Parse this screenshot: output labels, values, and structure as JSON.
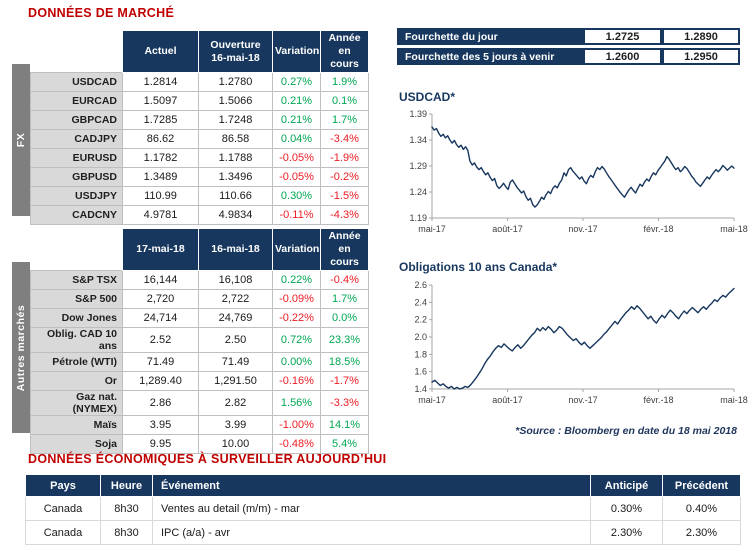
{
  "titles": {
    "market": "DONNÉES DE MARCHÉ",
    "econ": "DONNÉES ÉCONOMIQUES À SURVEILLER AUJOURD’HUI",
    "source": "*Source : Bloomberg en date du  18 mai 2018"
  },
  "colors": {
    "accent_navy": "#17375E",
    "positive_green": "#00A651",
    "negative_red": "#ED1C24",
    "title_red": "#C00000",
    "row_label_bg": "#D9D9D9",
    "group_strip_bg": "#7F7F7F"
  },
  "fx": {
    "group_label": "FX",
    "headers": [
      "Actuel",
      "Ouverture\n16-mai-18",
      "Variation",
      "Année en\ncours"
    ],
    "rows": [
      {
        "label": "USDCAD",
        "actuel": "1.2814",
        "ouverture": "1.2780",
        "variation": "0.27%",
        "ytd": "1.9%"
      },
      {
        "label": "EURCAD",
        "actuel": "1.5097",
        "ouverture": "1.5066",
        "variation": "0.21%",
        "ytd": "0.1%"
      },
      {
        "label": "GBPCAD",
        "actuel": "1.7285",
        "ouverture": "1.7248",
        "variation": "0.21%",
        "ytd": "1.7%"
      },
      {
        "label": "CADJPY",
        "actuel": "86.62",
        "ouverture": "86.58",
        "variation": "0.04%",
        "ytd": "-3.4%"
      },
      {
        "label": "EURUSD",
        "actuel": "1.1782",
        "ouverture": "1.1788",
        "variation": "-0.05%",
        "ytd": "-1.9%"
      },
      {
        "label": "GBPUSD",
        "actuel": "1.3489",
        "ouverture": "1.3496",
        "variation": "-0.05%",
        "ytd": "-0.2%"
      },
      {
        "label": "USDJPY",
        "actuel": "110.99",
        "ouverture": "110.66",
        "variation": "0.30%",
        "ytd": "-1.5%"
      },
      {
        "label": "CADCNY",
        "actuel": "4.9781",
        "ouverture": "4.9834",
        "variation": "-0.11%",
        "ytd": "-4.3%"
      }
    ]
  },
  "markets": {
    "group_label": "Autres marchés",
    "headers": [
      "17-mai-18",
      "16-mai-18",
      "Variation",
      "Année en\ncours"
    ],
    "rows": [
      {
        "label": "S&P TSX",
        "c1": "16,144",
        "c2": "16,108",
        "variation": "0.22%",
        "ytd": "-0.4%"
      },
      {
        "label": "S&P 500",
        "c1": "2,720",
        "c2": "2,722",
        "variation": "-0.09%",
        "ytd": "1.7%"
      },
      {
        "label": "Dow Jones",
        "c1": "24,714",
        "c2": "24,769",
        "variation": "-0.22%",
        "ytd": "0.0%"
      },
      {
        "label": "Oblig. CAD 10 ans",
        "c1": "2.52",
        "c2": "2.50",
        "variation": "0.72%",
        "ytd": "23.3%"
      },
      {
        "label": "Pétrole (WTI)",
        "c1": "71.49",
        "c2": "71.49",
        "variation": "0.00%",
        "ytd": "18.5%"
      },
      {
        "label": "Or",
        "c1": "1,289.40",
        "c2": "1,291.50",
        "variation": "-0.16%",
        "ytd": "-1.7%"
      },
      {
        "label": "Gaz nat. (NYMEX)",
        "c1": "2.86",
        "c2": "2.82",
        "variation": "1.56%",
        "ytd": "-3.3%"
      },
      {
        "label": "Maïs",
        "c1": "3.95",
        "c2": "3.99",
        "variation": "-1.00%",
        "ytd": "14.1%"
      },
      {
        "label": "Soja",
        "c1": "9.95",
        "c2": "10.00",
        "variation": "-0.48%",
        "ytd": "5.4%"
      }
    ]
  },
  "fourchette": {
    "rows": [
      {
        "label": "Fourchette du jour",
        "low": "1.2725",
        "high": "1.2890"
      },
      {
        "label": "Fourchette des 5 jours à venir",
        "low": "1.2600",
        "high": "1.2950"
      }
    ]
  },
  "chart_data": [
    {
      "type": "line",
      "title": "USDCAD*",
      "ylim": [
        1.19,
        1.39
      ],
      "ytick_labels": [
        "1.19",
        "1.24",
        "1.29",
        "1.34",
        "1.39"
      ],
      "x_tick_labels": [
        "mai-17",
        "août-17",
        "nov.-17",
        "févr.-18",
        "mai-18"
      ],
      "line_color": "#17375E",
      "values": [
        1.365,
        1.359,
        1.362,
        1.353,
        1.347,
        1.351,
        1.344,
        1.348,
        1.34,
        1.334,
        1.339,
        1.331,
        1.326,
        1.33,
        1.322,
        1.327,
        1.32,
        1.299,
        1.292,
        1.296,
        1.288,
        1.283,
        1.287,
        1.279,
        1.273,
        1.277,
        1.268,
        1.262,
        1.266,
        1.252,
        1.247,
        1.251,
        1.257,
        1.25,
        1.245,
        1.259,
        1.263,
        1.256,
        1.249,
        1.244,
        1.238,
        1.242,
        1.231,
        1.224,
        1.228,
        1.216,
        1.211,
        1.215,
        1.222,
        1.23,
        1.226,
        1.235,
        1.241,
        1.237,
        1.247,
        1.252,
        1.248,
        1.257,
        1.263,
        1.277,
        1.271,
        1.283,
        1.287,
        1.28,
        1.275,
        1.27,
        1.265,
        1.269,
        1.261,
        1.256,
        1.266,
        1.272,
        1.268,
        1.279,
        1.287,
        1.283,
        1.289,
        1.284,
        1.277,
        1.27,
        1.264,
        1.258,
        1.252,
        1.246,
        1.24,
        1.235,
        1.23,
        1.237,
        1.244,
        1.249,
        1.243,
        1.238,
        1.247,
        1.255,
        1.251,
        1.259,
        1.265,
        1.261,
        1.27,
        1.277,
        1.273,
        1.281,
        1.287,
        1.293,
        1.299,
        1.308,
        1.303,
        1.296,
        1.289,
        1.283,
        1.287,
        1.279,
        1.283,
        1.289,
        1.285,
        1.278,
        1.271,
        1.266,
        1.259,
        1.255,
        1.251,
        1.257,
        1.263,
        1.269,
        1.265,
        1.272,
        1.278,
        1.283,
        1.279,
        1.284,
        1.291,
        1.287,
        1.282,
        1.286,
        1.29,
        1.286
      ]
    },
    {
      "type": "line",
      "title": "Obligations 10 ans Canada*",
      "ylim": [
        1.4,
        2.6
      ],
      "ytick_labels": [
        "1.4",
        "1.6",
        "1.8",
        "2.0",
        "2.2",
        "2.4",
        "2.6"
      ],
      "x_tick_labels": [
        "mai-17",
        "août-17",
        "nov.-17",
        "févr.-18",
        "mai-18"
      ],
      "line_color": "#17375E",
      "values": [
        1.48,
        1.5,
        1.47,
        1.44,
        1.46,
        1.43,
        1.41,
        1.43,
        1.4,
        1.42,
        1.4,
        1.41,
        1.43,
        1.42,
        1.45,
        1.49,
        1.53,
        1.58,
        1.63,
        1.69,
        1.74,
        1.78,
        1.83,
        1.87,
        1.9,
        1.88,
        1.92,
        1.89,
        1.86,
        1.84,
        1.88,
        1.91,
        1.87,
        1.9,
        1.94,
        1.98,
        2.02,
        2.05,
        2.1,
        2.07,
        2.11,
        2.08,
        2.12,
        2.09,
        2.05,
        2.08,
        2.12,
        2.1,
        2.06,
        2.02,
        1.99,
        1.96,
        1.98,
        1.94,
        1.91,
        1.94,
        1.9,
        1.87,
        1.9,
        1.93,
        1.96,
        1.99,
        2.03,
        2.06,
        2.1,
        2.14,
        2.18,
        2.15,
        2.2,
        2.24,
        2.28,
        2.31,
        2.35,
        2.32,
        2.36,
        2.33,
        2.29,
        2.25,
        2.21,
        2.24,
        2.19,
        2.16,
        2.21,
        2.25,
        2.22,
        2.27,
        2.31,
        2.28,
        2.24,
        2.21,
        2.26,
        2.3,
        2.27,
        2.31,
        2.34,
        2.31,
        2.28,
        2.32,
        2.35,
        2.32,
        2.36,
        2.39,
        2.43,
        2.41,
        2.45,
        2.48,
        2.46,
        2.5,
        2.53,
        2.56
      ]
    }
  ],
  "econ": {
    "headers": [
      "Pays",
      "Heure",
      "Événement",
      "Anticipé",
      "Précédent"
    ],
    "rows": [
      {
        "pays": "Canada",
        "heure": "8h30",
        "evenement": "Ventes au detail (m/m) - mar",
        "anticipe": "0.30%",
        "precedent": "0.40%"
      },
      {
        "pays": "Canada",
        "heure": "8h30",
        "evenement": "IPC (a/a) - avr",
        "anticipe": "2.30%",
        "precedent": "2.30%"
      }
    ]
  }
}
